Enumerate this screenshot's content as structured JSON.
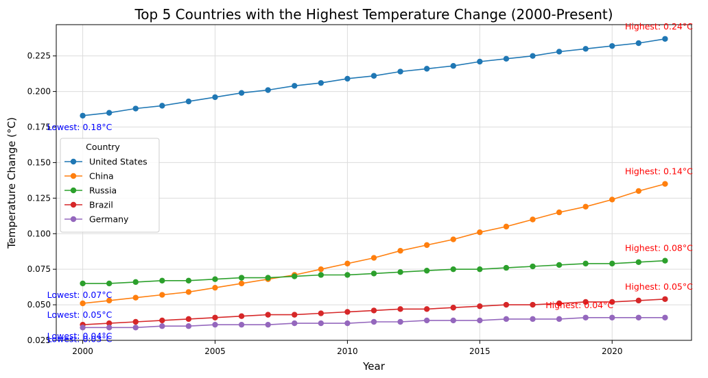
{
  "chart_data": {
    "type": "line",
    "title": "Top 5 Countries with the Highest Temperature Change (2000-Present)",
    "xlabel": "Year",
    "ylabel": "Temperature Change (°C)",
    "xlim": [
      1999,
      2023
    ],
    "ylim": [
      0.025,
      0.247
    ],
    "x_ticks": [
      2000,
      2005,
      2010,
      2015,
      2020
    ],
    "y_ticks": [
      0.025,
      0.05,
      0.075,
      0.1,
      0.125,
      0.15,
      0.175,
      0.2,
      0.225
    ],
    "y_tick_labels": [
      "0.025",
      "0.050",
      "0.075",
      "0.100",
      "0.125",
      "0.150",
      "0.175",
      "0.200",
      "0.225"
    ],
    "grid": true,
    "legend": {
      "title": "Country",
      "placement": "center-left"
    },
    "x": [
      2000,
      2001,
      2002,
      2003,
      2004,
      2005,
      2006,
      2007,
      2008,
      2009,
      2010,
      2011,
      2012,
      2013,
      2014,
      2015,
      2016,
      2017,
      2018,
      2019,
      2020,
      2021,
      2022
    ],
    "series": [
      {
        "name": "United States",
        "color": "#1f77b4",
        "values": [
          0.183,
          0.185,
          0.188,
          0.19,
          0.193,
          0.196,
          0.199,
          0.201,
          0.204,
          0.206,
          0.209,
          0.211,
          0.214,
          0.216,
          0.218,
          0.221,
          0.223,
          0.225,
          0.228,
          0.23,
          0.232,
          0.234,
          0.237
        ],
        "lowest_label": "Lowest: 0.18°C",
        "highest_label": "Highest: 0.24°C"
      },
      {
        "name": "China",
        "color": "#ff7f0e",
        "values": [
          0.051,
          0.053,
          0.055,
          0.057,
          0.059,
          0.062,
          0.065,
          0.068,
          0.071,
          0.075,
          0.079,
          0.083,
          0.088,
          0.092,
          0.096,
          0.101,
          0.105,
          0.11,
          0.115,
          0.119,
          0.124,
          0.13,
          0.135
        ],
        "lowest_label": "Lowest: 0.05°C",
        "highest_label": "Highest: 0.14°C"
      },
      {
        "name": "Russia",
        "color": "#2ca02c",
        "values": [
          0.065,
          0.065,
          0.066,
          0.067,
          0.067,
          0.068,
          0.069,
          0.069,
          0.07,
          0.071,
          0.071,
          0.072,
          0.073,
          0.074,
          0.075,
          0.075,
          0.076,
          0.077,
          0.078,
          0.079,
          0.079,
          0.08,
          0.081
        ],
        "lowest_label": "Lowest: 0.07°C",
        "highest_label": "Highest: 0.08°C"
      },
      {
        "name": "Brazil",
        "color": "#d62728",
        "values": [
          0.036,
          0.037,
          0.038,
          0.039,
          0.04,
          0.041,
          0.042,
          0.043,
          0.043,
          0.044,
          0.045,
          0.046,
          0.047,
          0.047,
          0.048,
          0.049,
          0.05,
          0.05,
          0.051,
          0.052,
          0.052,
          0.053,
          0.054
        ],
        "lowest_label": "Lowest: 0.04°C",
        "highest_label": "Highest: 0.05°C"
      },
      {
        "name": "Germany",
        "color": "#9467bd",
        "values": [
          0.034,
          0.034,
          0.034,
          0.035,
          0.035,
          0.036,
          0.036,
          0.036,
          0.037,
          0.037,
          0.037,
          0.038,
          0.038,
          0.039,
          0.039,
          0.039,
          0.04,
          0.04,
          0.04,
          0.041,
          0.041,
          0.041,
          0.041
        ],
        "lowest_label": "Lowest: 0.03°C",
        "highest_label": "Highest: 0.04°C"
      }
    ],
    "annotation_colors": {
      "lowest": "#0000ff",
      "highest": "#ff0000"
    }
  }
}
